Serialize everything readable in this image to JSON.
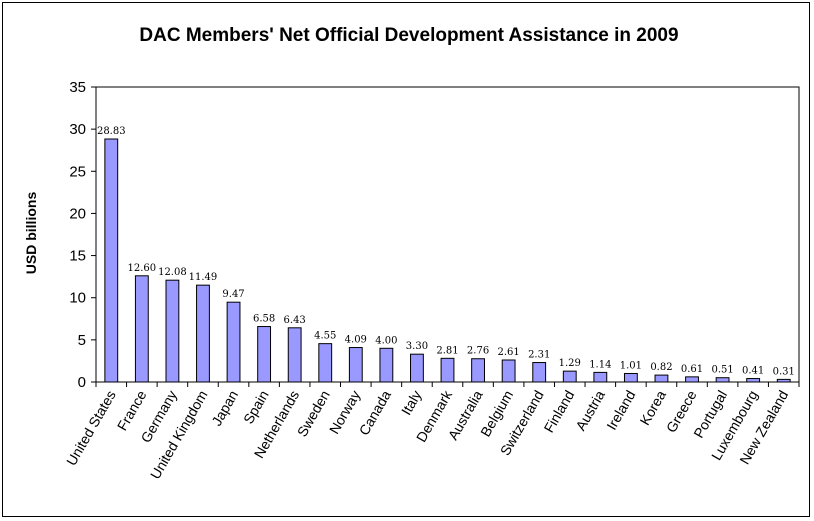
{
  "chart_data": {
    "type": "bar",
    "title": "DAC Members' Net Official Development Assistance in 2009",
    "xlabel": "",
    "ylabel": "USD billions",
    "ylim": [
      0,
      35
    ],
    "yticks": [
      0,
      5,
      10,
      15,
      20,
      25,
      30,
      35
    ],
    "grid": false,
    "legend": "none",
    "bar_color": "#9999ff",
    "categories": [
      "United States",
      "France",
      "Germany",
      "United Kingdom",
      "Japan",
      "Spain",
      "Netherlands",
      "Sweden",
      "Norway",
      "Canada",
      "Italy",
      "Denmark",
      "Australia",
      "Belgium",
      "Switzerland",
      "Finland",
      "Austria",
      "Ireland",
      "Korea",
      "Greece",
      "Portugal",
      "Luxembourg",
      "New Zealand"
    ],
    "values": [
      28.83,
      12.6,
      12.08,
      11.49,
      9.47,
      6.58,
      6.43,
      4.55,
      4.09,
      4.0,
      3.3,
      2.81,
      2.76,
      2.61,
      2.31,
      1.29,
      1.14,
      1.01,
      0.82,
      0.61,
      0.51,
      0.41,
      0.31
    ],
    "value_labels": [
      "28.83",
      "12.60",
      "12.08",
      "11.49",
      "9.47",
      "6.58",
      "6.43",
      "4.55",
      "4.09",
      "4.00",
      "3.30",
      "2.81",
      "2.76",
      "2.61",
      "2.31",
      "1.29",
      "1.14",
      "1.01",
      "0.82",
      "0.61",
      "0.51",
      "0.41",
      "0.31"
    ]
  }
}
